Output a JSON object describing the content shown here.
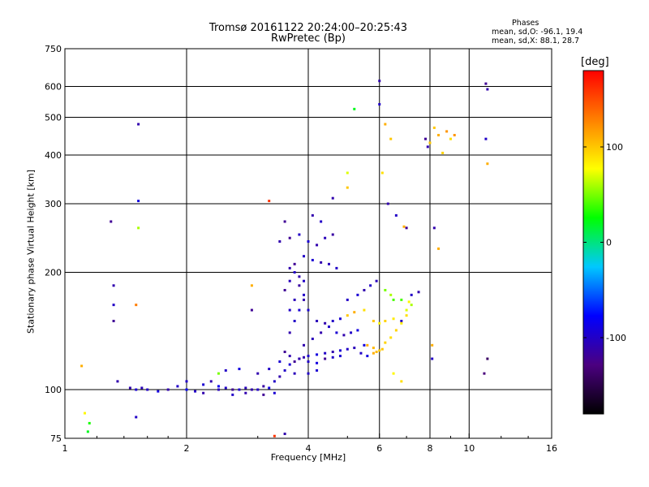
{
  "chart_data": {
    "type": "scatter",
    "title": "Tromsø 20161122 20:24:00–20:25:43",
    "subtitle": "RwPretec (Bp)",
    "xlabel": "Frequency [MHz]",
    "ylabel": "Stationary phase Virtual Height [km]",
    "x_scale": "log",
    "y_scale": "log",
    "xlim": [
      1,
      16
    ],
    "ylim": [
      75,
      750
    ],
    "x_ticks": [
      1,
      2,
      4,
      6,
      8,
      10,
      16
    ],
    "y_ticks": [
      75,
      100,
      200,
      300,
      400,
      500,
      600,
      750
    ],
    "grid": true,
    "phases": {
      "heading": "Phases",
      "line_o": "mean, sd,O: -96.1, 19.4",
      "line_x": "mean, sd,X:  88.1, 28.7"
    },
    "colorbar": {
      "label": "[deg]",
      "range": [
        -180,
        180
      ],
      "ticks": [
        100,
        0,
        -100
      ],
      "colors": [
        "#000000",
        "#4b0080",
        "#0000ff",
        "#00c8ff",
        "#00ff00",
        "#ffff00",
        "#ff8000",
        "#ff0000"
      ]
    },
    "series": [
      {
        "points": [
          [
            1.45,
            101,
            -110
          ],
          [
            1.5,
            100,
            -95
          ],
          [
            1.55,
            101,
            -105
          ],
          [
            1.6,
            100,
            -100
          ],
          [
            1.7,
            99,
            -90
          ],
          [
            1.8,
            100,
            -110
          ],
          [
            1.9,
            102,
            -100
          ],
          [
            2.0,
            100,
            -80
          ],
          [
            2.1,
            99,
            -100
          ],
          [
            2.2,
            103,
            -95
          ],
          [
            2.3,
            105,
            -110
          ],
          [
            2.4,
            102,
            -85
          ],
          [
            2.5,
            101,
            -100
          ],
          [
            2.6,
            100,
            -120
          ],
          [
            2.7,
            100,
            -95
          ],
          [
            2.8,
            101,
            -105
          ],
          [
            2.9,
            100,
            -110
          ],
          [
            3.0,
            100,
            -100
          ],
          [
            3.1,
            102,
            -115
          ],
          [
            3.2,
            101,
            -90
          ],
          [
            3.3,
            105,
            -100
          ],
          [
            3.4,
            108,
            -110
          ],
          [
            3.5,
            112,
            -100
          ],
          [
            3.6,
            116,
            -95
          ],
          [
            3.7,
            118,
            -120
          ],
          [
            3.8,
            120,
            -105
          ],
          [
            3.9,
            121,
            -110
          ],
          [
            4.0,
            122,
            -95
          ],
          [
            4.2,
            123,
            -90
          ],
          [
            4.4,
            124,
            -100
          ],
          [
            4.6,
            125,
            -110
          ],
          [
            4.8,
            126,
            -95
          ],
          [
            5.0,
            127,
            -100
          ],
          [
            5.2,
            128,
            -105
          ],
          [
            5.5,
            130,
            -90
          ],
          [
            3.5,
            125,
            -120
          ],
          [
            3.6,
            140,
            -110
          ],
          [
            3.7,
            150,
            -100
          ],
          [
            3.8,
            160,
            -95
          ],
          [
            3.9,
            170,
            -110
          ],
          [
            3.5,
            180,
            -120
          ],
          [
            3.6,
            190,
            -105
          ],
          [
            3.7,
            200,
            -100
          ],
          [
            3.8,
            185,
            -115
          ],
          [
            3.9,
            175,
            -100
          ],
          [
            4.0,
            160,
            -95
          ],
          [
            4.2,
            150,
            -105
          ],
          [
            4.4,
            148,
            -110
          ],
          [
            4.6,
            150,
            -100
          ],
          [
            4.8,
            152,
            -95
          ],
          [
            5.0,
            155,
            100
          ],
          [
            5.2,
            158,
            110
          ],
          [
            5.5,
            160,
            90
          ],
          [
            5.8,
            150,
            100
          ],
          [
            6.0,
            148,
            80
          ],
          [
            6.2,
            150,
            95
          ],
          [
            6.5,
            152,
            85
          ],
          [
            6.8,
            150,
            -100
          ],
          [
            7.0,
            155,
            90
          ],
          [
            7.2,
            165,
            60
          ],
          [
            3.4,
            240,
            -110
          ],
          [
            3.6,
            245,
            -120
          ],
          [
            3.8,
            250,
            -100
          ],
          [
            4.0,
            240,
            -95
          ],
          [
            4.2,
            235,
            -110
          ],
          [
            4.4,
            245,
            -105
          ],
          [
            4.6,
            250,
            -115
          ],
          [
            3.9,
            220,
            -100
          ],
          [
            4.1,
            215,
            -95
          ],
          [
            4.3,
            212,
            -110
          ],
          [
            4.5,
            210,
            -105
          ],
          [
            4.7,
            205,
            -100
          ],
          [
            3.5,
            270,
            -120
          ],
          [
            4.1,
            280,
            -110
          ],
          [
            4.3,
            270,
            -100
          ],
          [
            5.6,
            130,
            110
          ],
          [
            5.8,
            128,
            105
          ],
          [
            6.0,
            126,
            100
          ],
          [
            6.2,
            132,
            95
          ],
          [
            6.4,
            136,
            90
          ],
          [
            6.6,
            142,
            95
          ],
          [
            6.8,
            148,
            85
          ],
          [
            7.0,
            160,
            70
          ],
          [
            6.5,
            170,
            40
          ],
          [
            7.2,
            175,
            -100
          ],
          [
            7.5,
            178,
            -110
          ],
          [
            7.8,
            440,
            -120
          ],
          [
            8.0,
            430,
            100
          ],
          [
            8.4,
            450,
            110
          ],
          [
            8.8,
            460,
            120
          ],
          [
            9.0,
            440,
            90
          ],
          [
            8.2,
            470,
            100
          ],
          [
            7.9,
            420,
            -110
          ],
          [
            8.6,
            405,
            95
          ],
          [
            6.0,
            620,
            -110
          ],
          [
            6.0,
            540,
            -100
          ],
          [
            6.2,
            480,
            110
          ],
          [
            6.4,
            440,
            100
          ],
          [
            6.1,
            360,
            90
          ],
          [
            5.0,
            330,
            100
          ],
          [
            5.0,
            360,
            70
          ],
          [
            5.2,
            525,
            20
          ],
          [
            6.3,
            300,
            -110
          ],
          [
            6.6,
            280,
            -100
          ],
          [
            7.0,
            260,
            -120
          ],
          [
            6.9,
            262,
            110
          ],
          [
            8.2,
            260,
            -110
          ],
          [
            8.4,
            230,
            110
          ],
          [
            9.2,
            450,
            120
          ],
          [
            11.0,
            610,
            -120
          ],
          [
            11.1,
            590,
            -110
          ],
          [
            11.0,
            440,
            -100
          ],
          [
            11.1,
            380,
            110
          ],
          [
            10.9,
            110,
            -130
          ],
          [
            11.1,
            120,
            -140
          ],
          [
            1.3,
            270,
            -120
          ],
          [
            1.32,
            185,
            -110
          ],
          [
            1.32,
            165,
            -100
          ],
          [
            1.32,
            150,
            -120
          ],
          [
            1.35,
            105,
            -110
          ],
          [
            1.5,
            165,
            130
          ],
          [
            1.52,
            480,
            -110
          ],
          [
            1.52,
            305,
            -90
          ],
          [
            1.52,
            260,
            60
          ],
          [
            1.5,
            85,
            -100
          ],
          [
            1.1,
            115,
            110
          ],
          [
            1.12,
            87,
            80
          ],
          [
            1.15,
            82,
            30
          ],
          [
            1.14,
            78,
            20
          ],
          [
            3.5,
            77,
            -110
          ],
          [
            3.3,
            76,
            160
          ],
          [
            2.9,
            185,
            110
          ],
          [
            2.9,
            160,
            -120
          ],
          [
            3.2,
            305,
            160
          ],
          [
            3.8,
            120,
            -110
          ],
          [
            4.6,
            310,
            -110
          ],
          [
            6.5,
            110,
            80
          ],
          [
            6.8,
            105,
            90
          ],
          [
            8.1,
            130,
            110
          ],
          [
            8.1,
            120,
            -100
          ],
          [
            2.0,
            105,
            -100
          ],
          [
            2.2,
            98,
            -110
          ],
          [
            2.4,
            100,
            -105
          ],
          [
            2.6,
            97,
            -100
          ],
          [
            2.8,
            98,
            -110
          ],
          [
            3.1,
            97,
            -120
          ],
          [
            3.3,
            98,
            -95
          ],
          [
            2.4,
            110,
            50
          ],
          [
            2.5,
            112,
            -100
          ],
          [
            2.7,
            113,
            -90
          ],
          [
            3.0,
            110,
            -110
          ],
          [
            3.2,
            113,
            -100
          ],
          [
            3.4,
            118,
            -95
          ],
          [
            3.6,
            122,
            -110
          ],
          [
            3.7,
            110,
            -105
          ],
          [
            4.0,
            118,
            -100
          ],
          [
            4.2,
            117,
            -90
          ],
          [
            4.4,
            120,
            -120
          ],
          [
            4.6,
            121,
            -100
          ],
          [
            4.8,
            122,
            -95
          ],
          [
            5.4,
            124,
            -100
          ],
          [
            5.6,
            122,
            -90
          ],
          [
            5.8,
            124,
            110
          ],
          [
            5.9,
            125,
            105
          ],
          [
            6.1,
            127,
            100
          ],
          [
            4.0,
            110,
            -100
          ],
          [
            4.2,
            112,
            -95
          ],
          [
            3.9,
            130,
            -110
          ],
          [
            4.1,
            135,
            -105
          ],
          [
            4.3,
            140,
            -110
          ],
          [
            4.5,
            145,
            -100
          ],
          [
            4.7,
            140,
            -95
          ],
          [
            4.9,
            138,
            -110
          ],
          [
            5.1,
            140,
            -100
          ],
          [
            5.3,
            142,
            -90
          ],
          [
            3.6,
            160,
            -100
          ],
          [
            3.7,
            170,
            -105
          ],
          [
            3.8,
            195,
            -110
          ],
          [
            3.9,
            190,
            -100
          ],
          [
            3.7,
            210,
            -120
          ],
          [
            3.6,
            205,
            -110
          ],
          [
            5.0,
            170,
            -100
          ],
          [
            5.3,
            175,
            -95
          ],
          [
            5.5,
            180,
            -110
          ],
          [
            5.7,
            185,
            -100
          ],
          [
            5.9,
            190,
            -105
          ],
          [
            6.2,
            180,
            50
          ],
          [
            6.4,
            175,
            60
          ],
          [
            6.8,
            170,
            40
          ],
          [
            7.1,
            168,
            80
          ]
        ]
      }
    ]
  }
}
